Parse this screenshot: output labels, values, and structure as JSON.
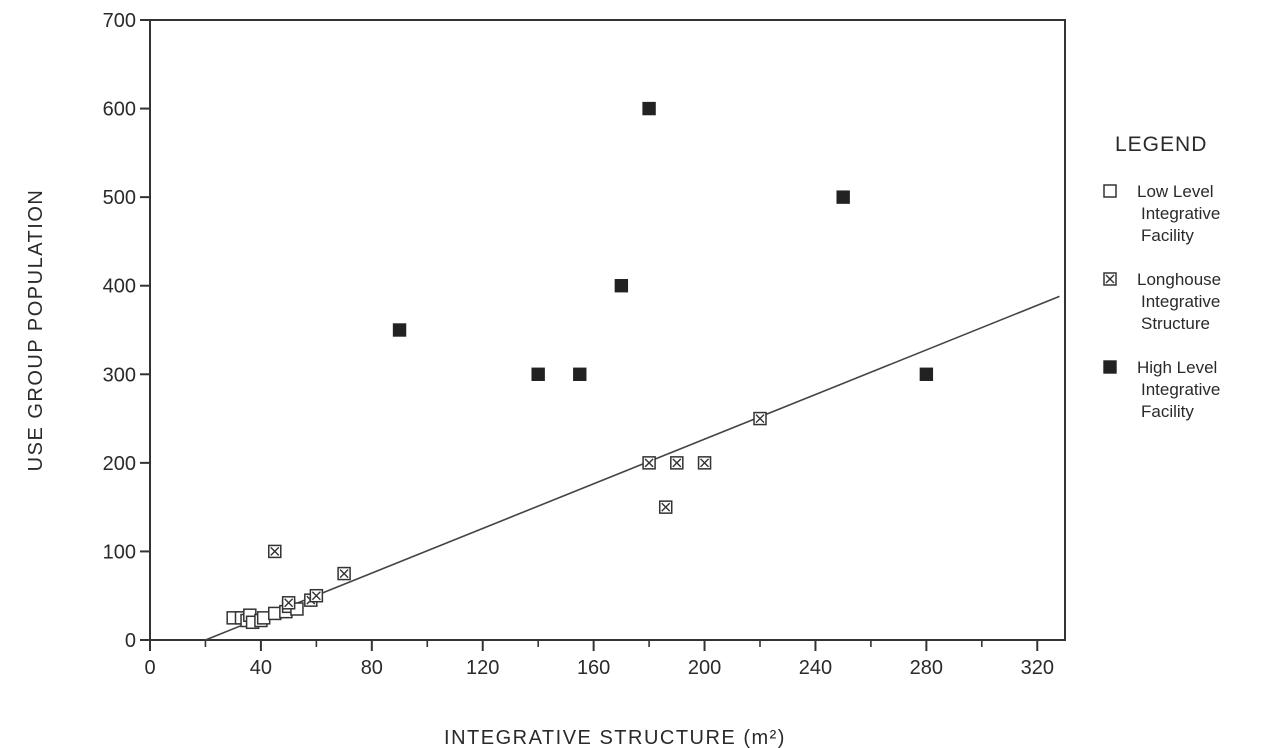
{
  "chart_data": {
    "type": "scatter",
    "title": "",
    "xlabel": "INTEGRATIVE STRUCTURE (m²)",
    "ylabel": "USE GROUP POPULATION",
    "xlim": [
      0,
      330
    ],
    "ylim": [
      0,
      700
    ],
    "x_ticks": [
      0,
      40,
      80,
      120,
      160,
      200,
      240,
      280,
      320
    ],
    "y_ticks": [
      0,
      100,
      200,
      300,
      400,
      500,
      600,
      700
    ],
    "grid": false,
    "legend": {
      "title": "LEGEND",
      "placement": "right",
      "entries": [
        {
          "marker": "open-square",
          "lines": [
            "Low Level",
            "Integrative",
            "Facility"
          ]
        },
        {
          "marker": "crossed-square",
          "lines": [
            "Longhouse",
            "Integrative",
            "Structure"
          ]
        },
        {
          "marker": "filled-square",
          "lines": [
            "High Level",
            "Integrative",
            "Facility"
          ]
        }
      ]
    },
    "series": [
      {
        "marker": "open-square",
        "points": [
          {
            "x": 30,
            "y": 25
          },
          {
            "x": 33,
            "y": 25
          },
          {
            "x": 35,
            "y": 22
          },
          {
            "x": 36,
            "y": 28
          },
          {
            "x": 37,
            "y": 20
          },
          {
            "x": 40,
            "y": 22
          },
          {
            "x": 41,
            "y": 25
          },
          {
            "x": 45,
            "y": 30
          },
          {
            "x": 49,
            "y": 32
          },
          {
            "x": 50,
            "y": 38
          },
          {
            "x": 53,
            "y": 35
          }
        ]
      },
      {
        "marker": "crossed-square",
        "points": [
          {
            "x": 45,
            "y": 100
          },
          {
            "x": 50,
            "y": 42
          },
          {
            "x": 58,
            "y": 45
          },
          {
            "x": 60,
            "y": 50
          },
          {
            "x": 70,
            "y": 75
          },
          {
            "x": 180,
            "y": 200
          },
          {
            "x": 186,
            "y": 150
          },
          {
            "x": 190,
            "y": 200
          },
          {
            "x": 200,
            "y": 200
          },
          {
            "x": 220,
            "y": 250
          }
        ]
      },
      {
        "marker": "filled-square",
        "points": [
          {
            "x": 90,
            "y": 350
          },
          {
            "x": 140,
            "y": 300
          },
          {
            "x": 155,
            "y": 300
          },
          {
            "x": 170,
            "y": 400
          },
          {
            "x": 180,
            "y": 600
          },
          {
            "x": 250,
            "y": 500
          },
          {
            "x": 280,
            "y": 300
          }
        ]
      }
    ],
    "trendline": {
      "x": [
        20,
        328
      ],
      "y": [
        0,
        388
      ]
    }
  }
}
